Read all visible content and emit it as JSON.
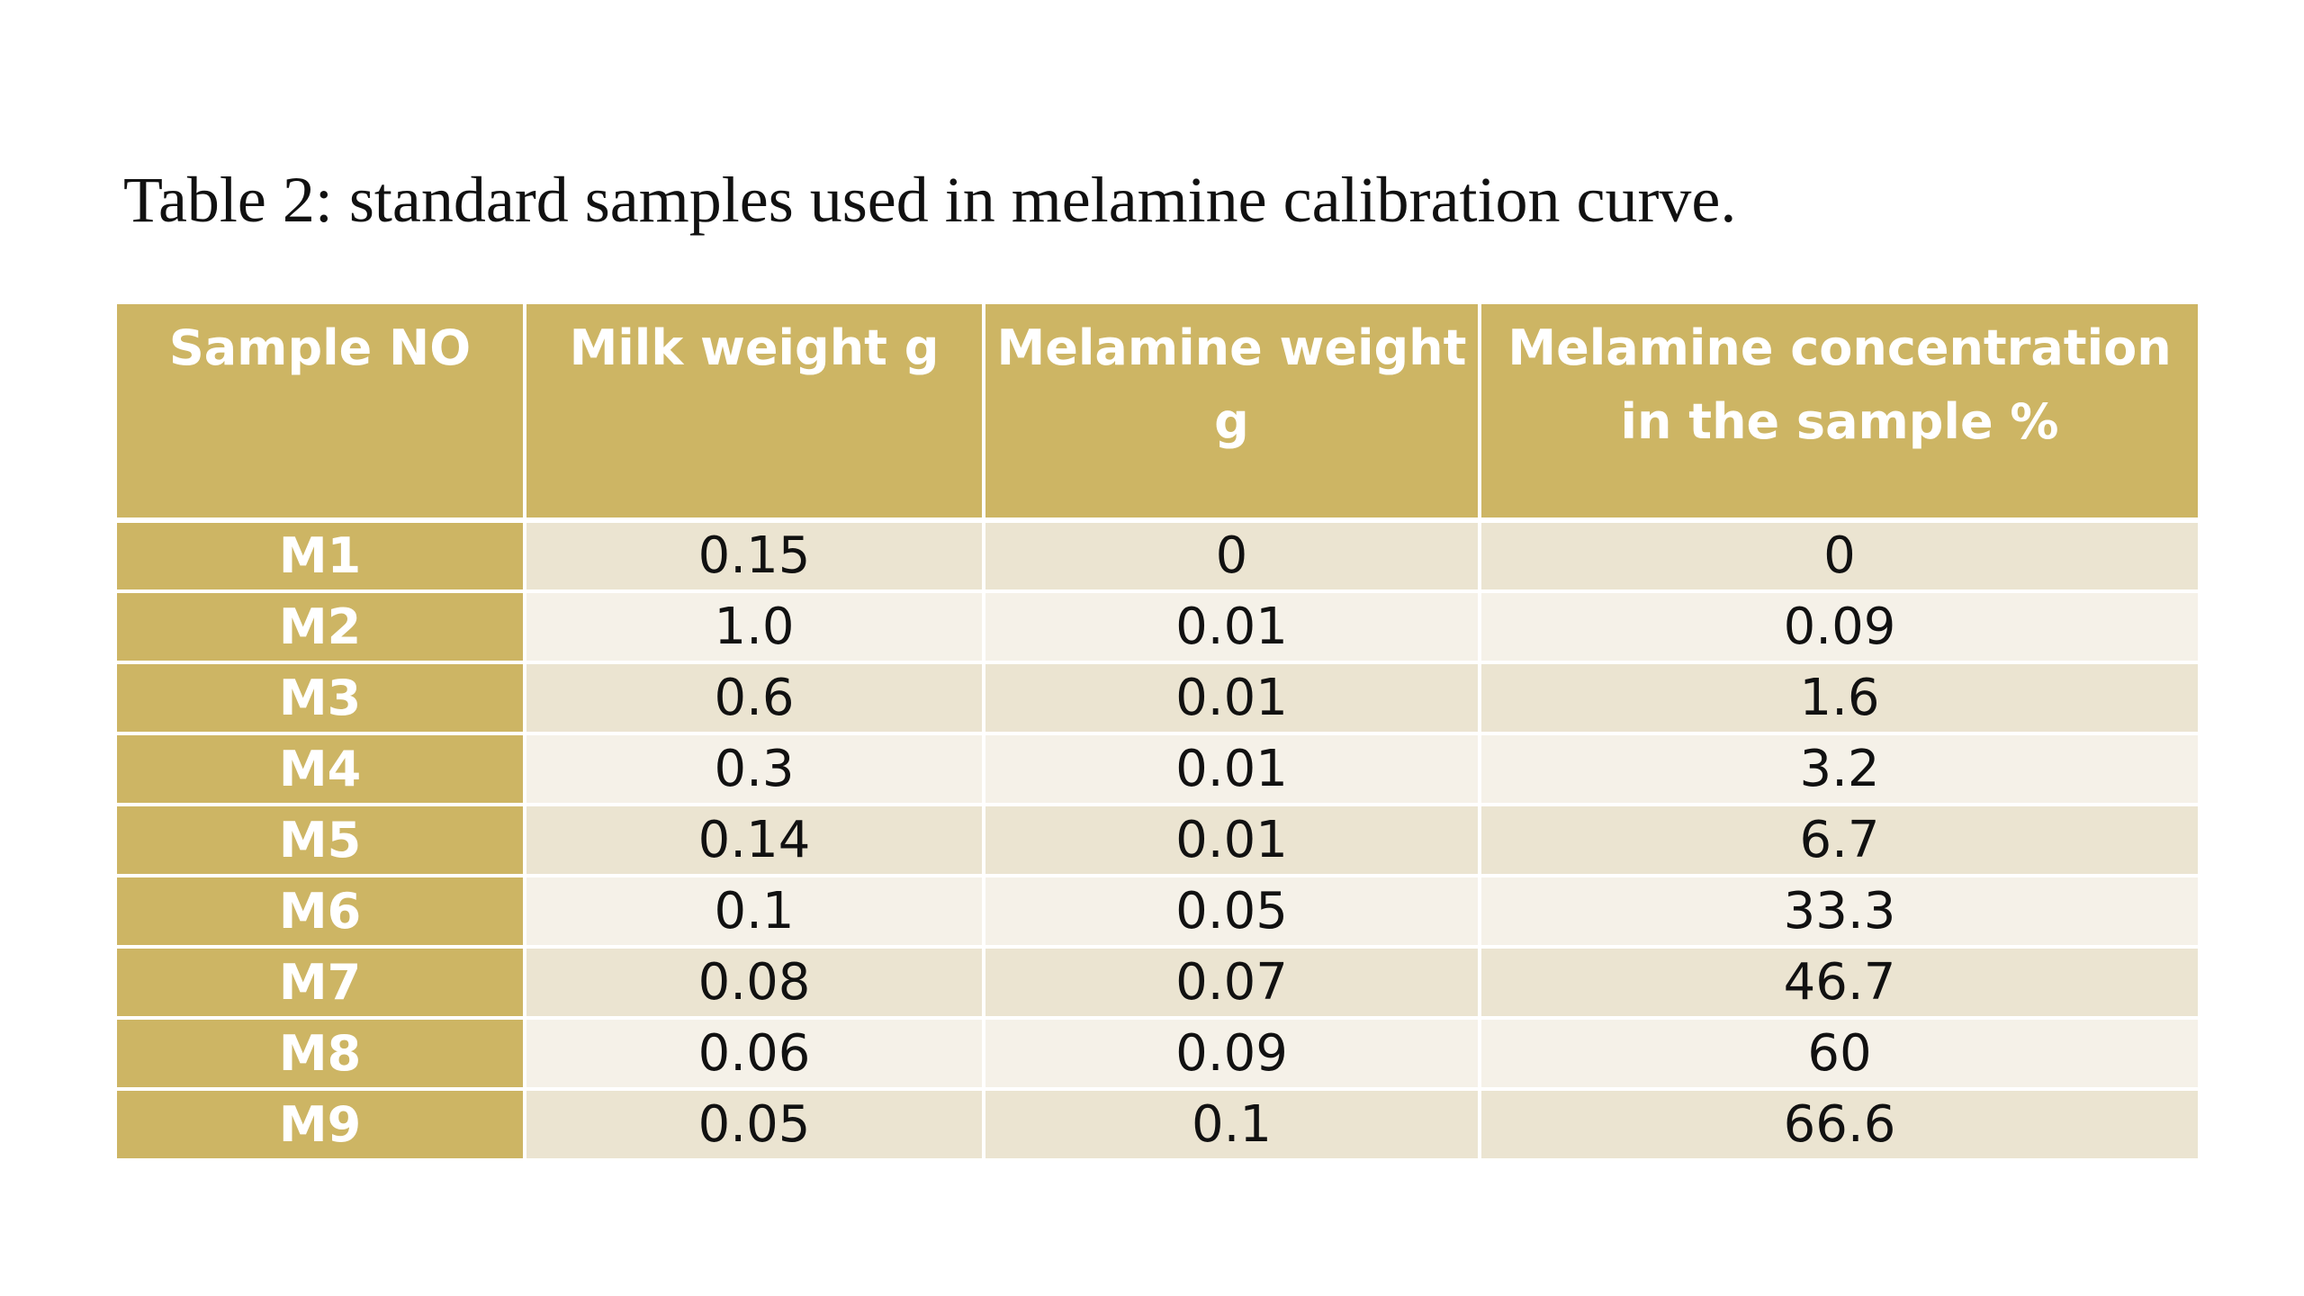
{
  "caption": "Table 2: standard samples used in melamine calibration curve.",
  "table": {
    "headers": [
      "Sample NO",
      "Milk weight g",
      "Melamine weight g",
      "Melamine concentration in the sample %"
    ],
    "rows": [
      [
        "M1",
        "0.15",
        "0",
        "0"
      ],
      [
        "M2",
        "1.0",
        "0.01",
        "0.09"
      ],
      [
        "M3",
        "0.6",
        "0.01",
        "1.6"
      ],
      [
        "M4",
        "0.3",
        "0.01",
        "3.2"
      ],
      [
        "M5",
        "0.14",
        "0.01",
        "6.7"
      ],
      [
        "M6",
        "0.1",
        "0.05",
        "33.3"
      ],
      [
        "M7",
        "0.08",
        "0.07",
        "46.7"
      ],
      [
        "M8",
        "0.06",
        "0.09",
        "60"
      ],
      [
        "M9",
        "0.05",
        "0.1",
        "66.6"
      ]
    ]
  },
  "colors": {
    "header_bg": "#cdb564",
    "row_odd_bg": "#ebe4d1",
    "row_even_bg": "#f5f1e8",
    "header_text": "#ffffff"
  }
}
